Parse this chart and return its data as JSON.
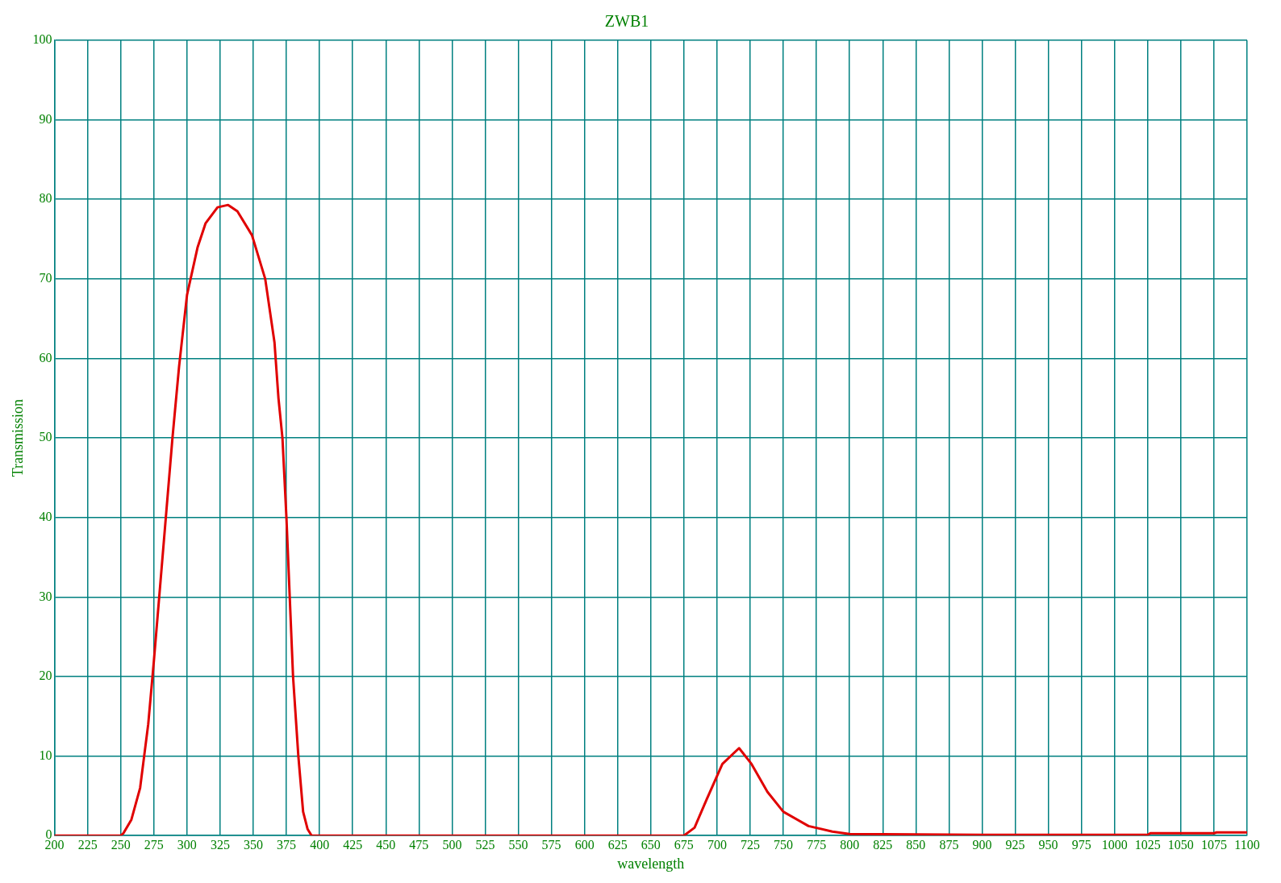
{
  "chart_data": {
    "type": "line",
    "title": "ZWB1",
    "xlabel": "wavelength",
    "ylabel": "Transmission",
    "xlim": [
      200,
      1100
    ],
    "xticks": [
      200,
      225,
      250,
      275,
      300,
      325,
      350,
      375,
      400,
      425,
      450,
      475,
      500,
      525,
      550,
      575,
      600,
      625,
      650,
      675,
      700,
      725,
      750,
      775,
      800,
      825,
      850,
      875,
      900,
      925,
      950,
      975,
      1000,
      1025,
      1050,
      1075,
      1100
    ],
    "ylim": [
      0,
      100
    ],
    "yticks": [
      0,
      10,
      20,
      30,
      40,
      50,
      60,
      70,
      80,
      90,
      100
    ],
    "grid": true,
    "legend": false,
    "marker": "none",
    "line_style": "solid",
    "series": [
      {
        "color": "#e00000",
        "x": [
          200,
          250,
          252,
          258,
          264.6,
          270.7,
          275,
          280,
          284,
          289,
          294,
          300,
          308,
          314,
          323,
          331,
          338,
          349,
          359,
          366,
          369,
          372,
          375,
          380,
          384,
          387.6,
          391,
          394,
          450,
          600,
          675,
          683,
          692,
          704,
          716.6,
          726,
          738,
          750,
          769,
          787,
          800,
          900,
          1025,
          1027,
          1075,
          1077,
          1100
        ],
        "values": [
          0,
          0,
          0.3,
          2,
          6,
          14,
          22,
          32,
          40,
          50,
          59,
          68,
          74,
          77,
          79,
          79.3,
          78.5,
          75.5,
          70,
          62,
          55,
          50,
          40,
          20,
          10,
          3,
          0.8,
          0,
          0,
          0,
          0,
          1,
          4.5,
          9,
          11,
          9,
          5.5,
          3,
          1.2,
          0.5,
          0.2,
          0.1,
          0.1,
          0.3,
          0.3,
          0.4,
          0.4
        ]
      }
    ]
  }
}
